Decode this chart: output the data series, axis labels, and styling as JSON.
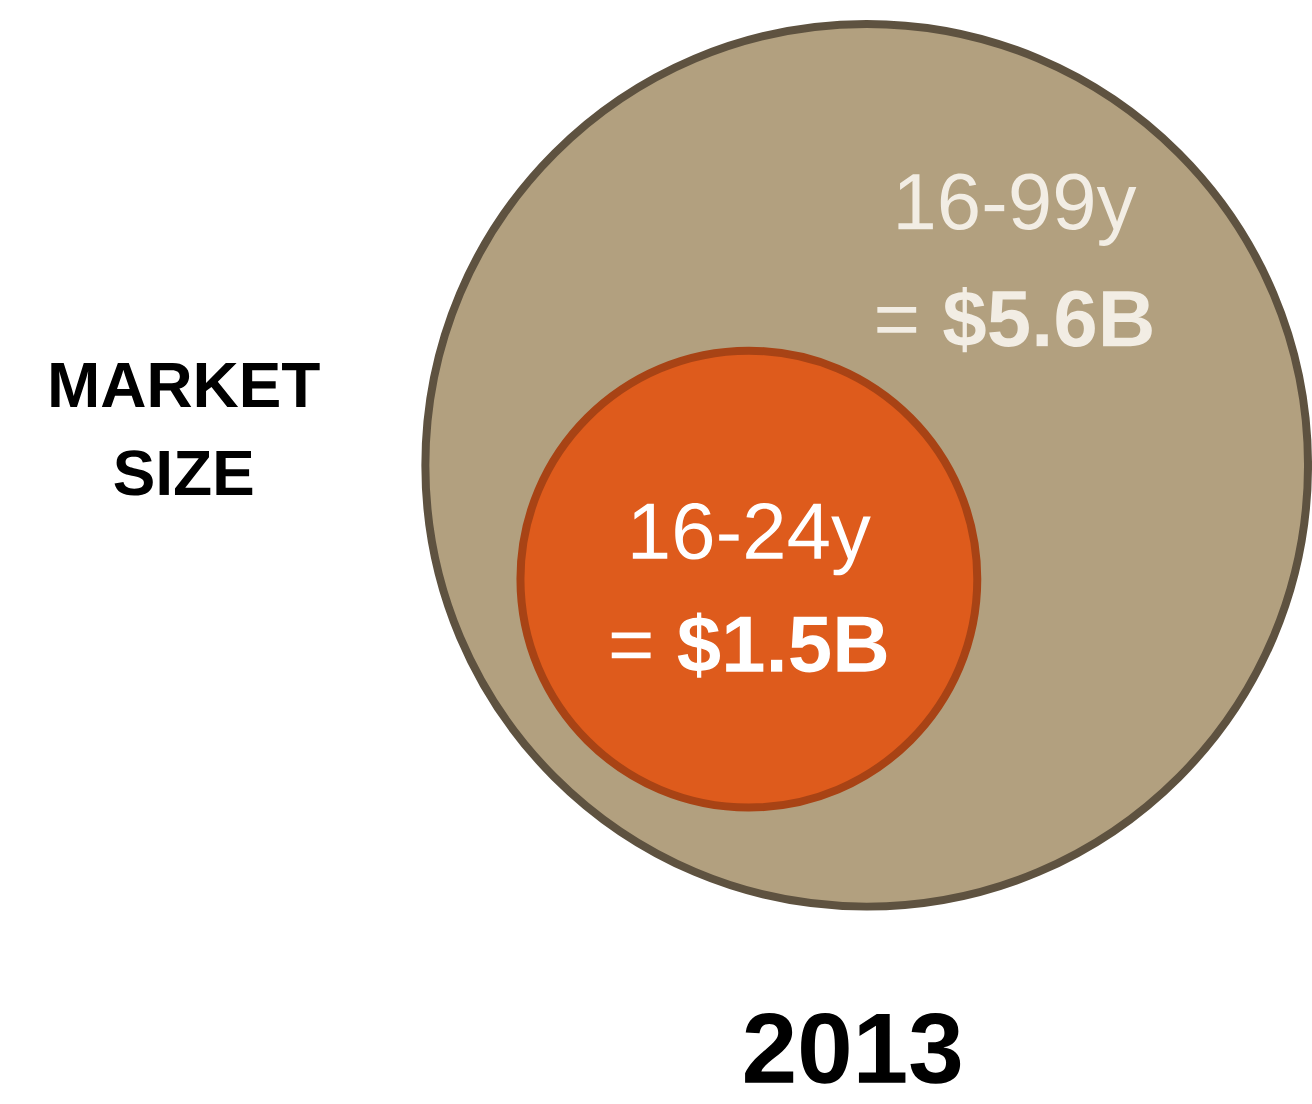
{
  "chart_data": {
    "type": "other",
    "ylabel": "MARKET SIZE",
    "xlabel": "2013",
    "categories": [
      "16-99y",
      "16-24y"
    ],
    "values": [
      5.6,
      1.5
    ],
    "value_labels": [
      "= **$5.6B**",
      "= **$1.5B**"
    ],
    "colors": [
      "#b2a07f",
      "#de5b1c"
    ]
  }
}
